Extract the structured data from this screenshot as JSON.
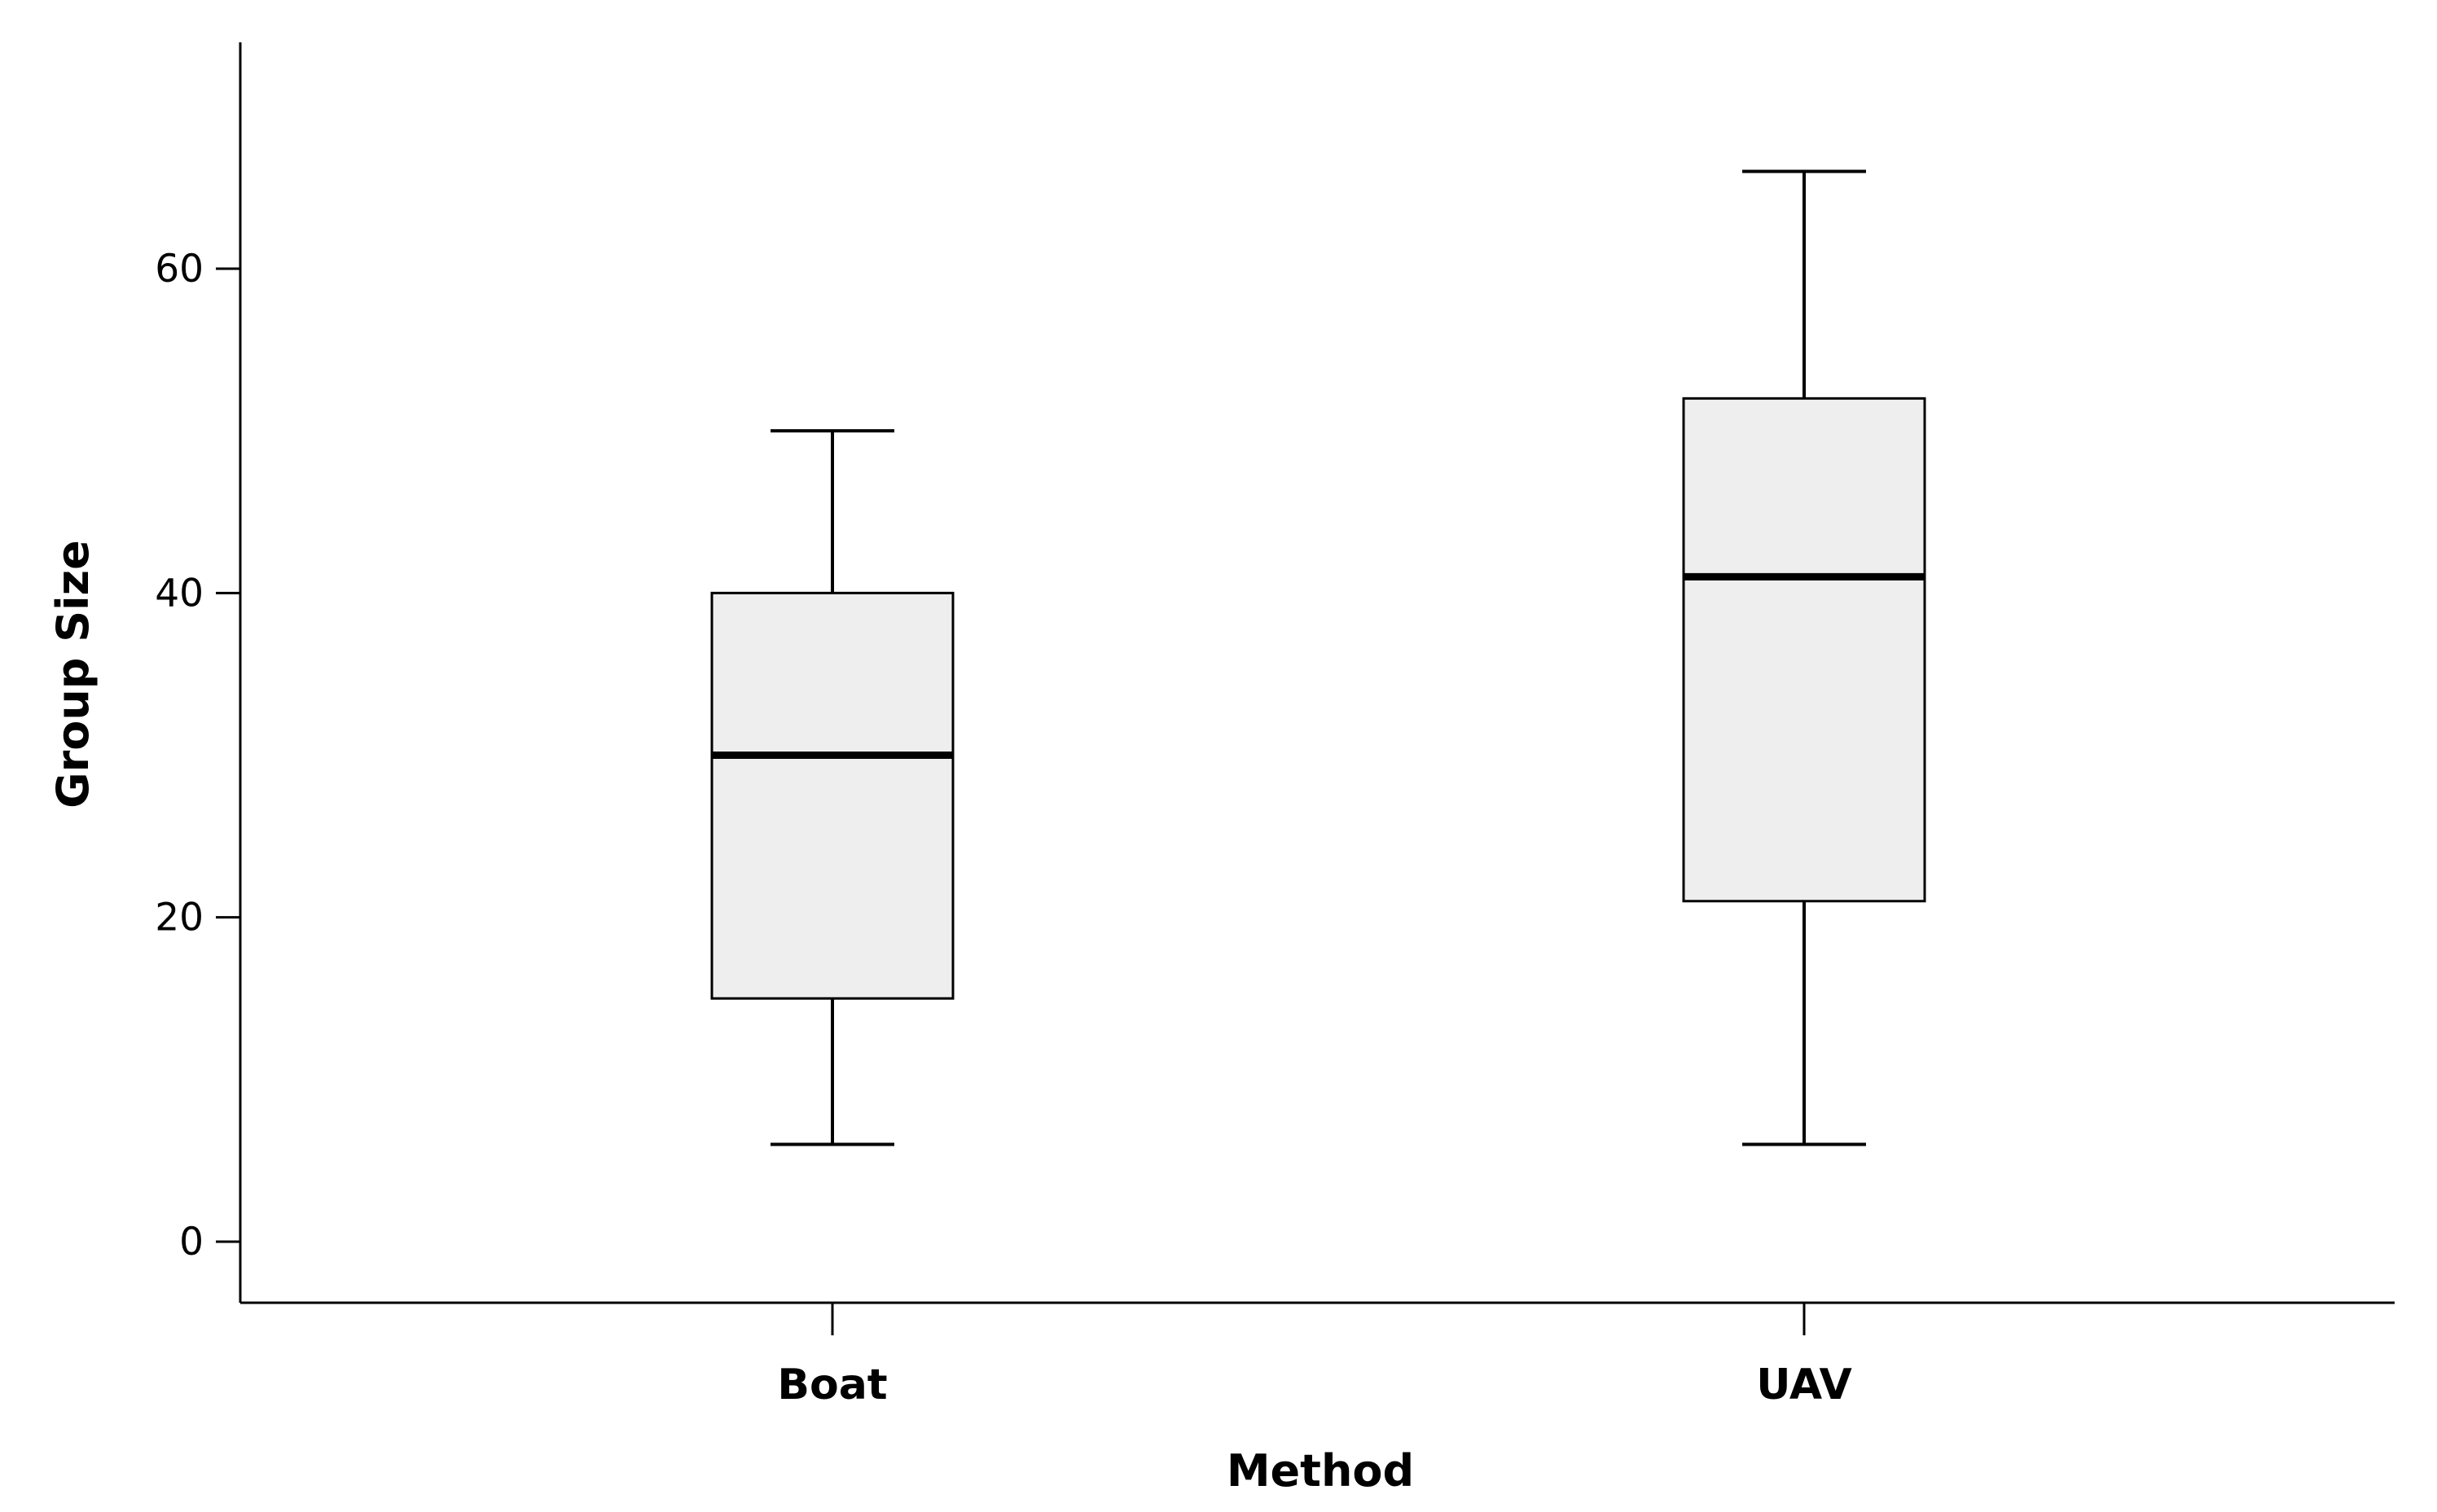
{
  "chart_data": {
    "type": "boxplot",
    "title": "",
    "xlabel": "Method",
    "ylabel": "Group Size",
    "ylim": [
      -7.5,
      74
    ],
    "yticks": [
      0,
      20,
      40,
      60
    ],
    "grid": false,
    "legend": "none",
    "categories": [
      "Boat",
      "UAV"
    ],
    "series": [
      {
        "values": [
          {
            "category": "Boat",
            "min": 6,
            "q1": 15,
            "median": 30,
            "q3": 40,
            "max": 50
          },
          {
            "category": "UAV",
            "min": 6,
            "q1": 21,
            "median": 41,
            "q3": 52,
            "max": 66
          }
        ]
      }
    ],
    "colors": {
      "box_fill": "#eeeeee",
      "box_stroke": "#000000",
      "median": "#000000",
      "axis": "#000000"
    }
  }
}
